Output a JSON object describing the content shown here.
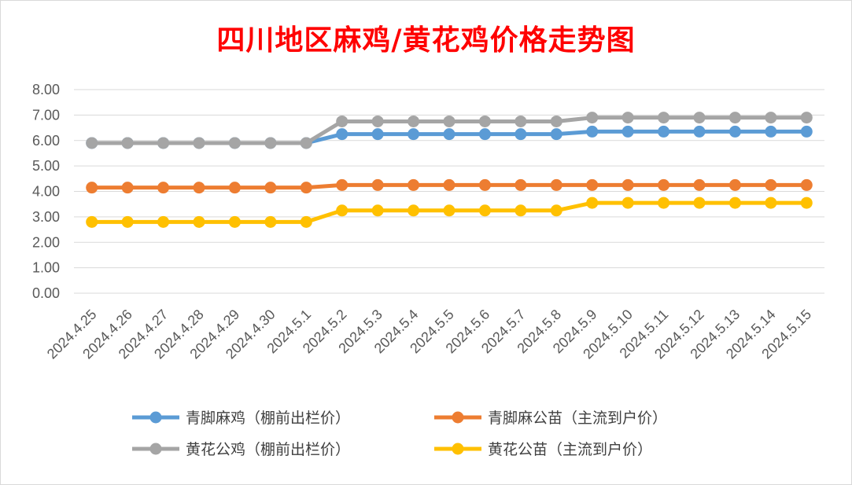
{
  "chart_data": {
    "type": "line",
    "title": "四川地区麻鸡/黄花鸡价格走势图",
    "xlabel": "",
    "ylabel": "",
    "ylim": [
      0,
      8
    ],
    "yticks": [
      "0.00",
      "1.00",
      "2.00",
      "3.00",
      "4.00",
      "5.00",
      "6.00",
      "7.00",
      "8.00"
    ],
    "grid": true,
    "legend_position": "bottom",
    "categories": [
      "2024.4.25",
      "2024.4.26",
      "2024.4.27",
      "2024.4.28",
      "2024.4.29",
      "2024.4.30",
      "2024.5.1",
      "2024.5.2",
      "2024.5.3",
      "2024.5.4",
      "2024.5.5",
      "2024.5.6",
      "2024.5.7",
      "2024.5.8",
      "2024.5.9",
      "2024.5.10",
      "2024.5.11",
      "2024.5.12",
      "2024.5.13",
      "2024.5.14",
      "2024.5.15"
    ],
    "series": [
      {
        "name": "青脚麻鸡（棚前出栏价）",
        "color": "#5b9bd5",
        "values": [
          5.9,
          5.9,
          5.9,
          5.9,
          5.9,
          5.9,
          5.9,
          6.25,
          6.25,
          6.25,
          6.25,
          6.25,
          6.25,
          6.25,
          6.35,
          6.35,
          6.35,
          6.35,
          6.35,
          6.35,
          6.35
        ]
      },
      {
        "name": "青脚麻公苗（主流到户价）",
        "color": "#ed7d31",
        "values": [
          4.15,
          4.15,
          4.15,
          4.15,
          4.15,
          4.15,
          4.15,
          4.25,
          4.25,
          4.25,
          4.25,
          4.25,
          4.25,
          4.25,
          4.25,
          4.25,
          4.25,
          4.25,
          4.25,
          4.25,
          4.25
        ]
      },
      {
        "name": "黄花公鸡（棚前出栏价）",
        "color": "#a5a5a5",
        "values": [
          5.9,
          5.9,
          5.9,
          5.9,
          5.9,
          5.9,
          5.9,
          6.75,
          6.75,
          6.75,
          6.75,
          6.75,
          6.75,
          6.75,
          6.9,
          6.9,
          6.9,
          6.9,
          6.9,
          6.9,
          6.9
        ]
      },
      {
        "name": "黄花公苗（主流到户价）",
        "color": "#ffc000",
        "values": [
          2.8,
          2.8,
          2.8,
          2.8,
          2.8,
          2.8,
          2.8,
          3.25,
          3.25,
          3.25,
          3.25,
          3.25,
          3.25,
          3.25,
          3.55,
          3.55,
          3.55,
          3.55,
          3.55,
          3.55,
          3.55
        ]
      }
    ]
  }
}
